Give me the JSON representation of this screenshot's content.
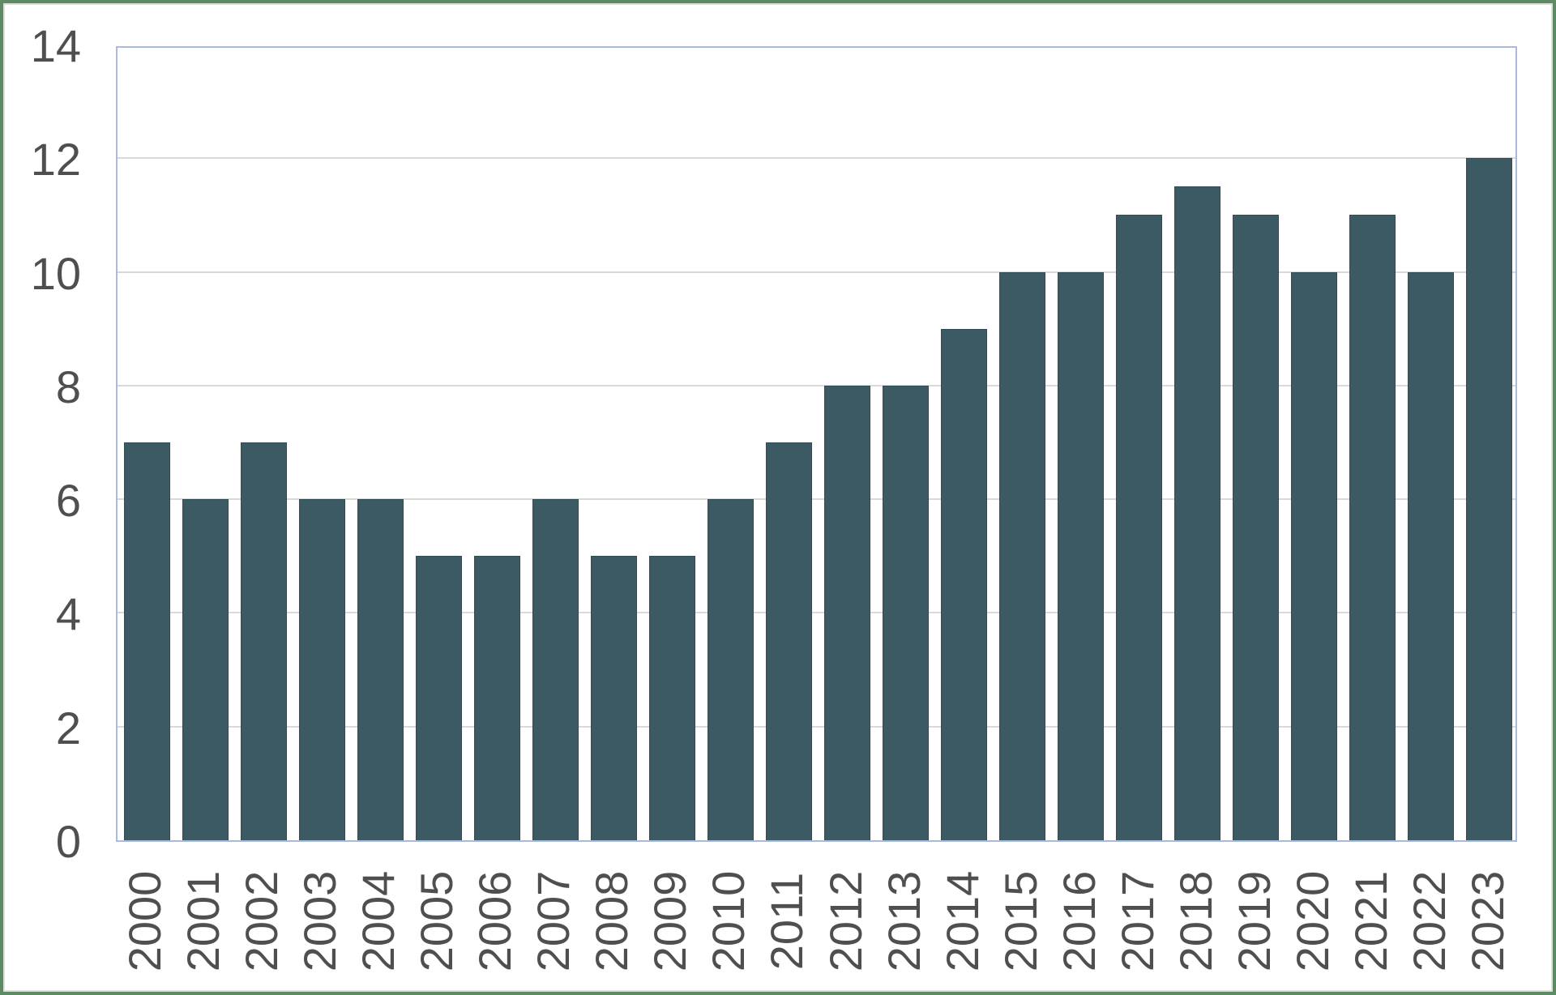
{
  "chart_data": {
    "type": "bar",
    "title": "",
    "xlabel": "",
    "ylabel": "",
    "categories": [
      "2000",
      "2001",
      "2002",
      "2003",
      "2004",
      "2005",
      "2006",
      "2007",
      "2008",
      "2009",
      "2010",
      "2011",
      "2012",
      "2013",
      "2014",
      "2015",
      "2016",
      "2017",
      "2018",
      "2019",
      "2020",
      "2021",
      "2022",
      "2023"
    ],
    "values": [
      7,
      6,
      7,
      6,
      6,
      5,
      5,
      6,
      5,
      5,
      6,
      7,
      8,
      8,
      9,
      10,
      10,
      11,
      11.5,
      11,
      10,
      11,
      10,
      12
    ],
    "yticks": [
      0,
      2,
      4,
      6,
      8,
      10,
      12,
      14
    ],
    "ylim": [
      0,
      14
    ],
    "grid": "horizontal",
    "legend": "none",
    "x_label_rotation_deg": -90,
    "colors": {
      "bar_fill": "#3b5a63",
      "bar_border": "#2e4d57",
      "gridline": "#d9d9d9",
      "plot_border": "#a9badd",
      "axis_label": "#4f4f4f",
      "frame_green": "#5d8a62",
      "frame_inner_line": "#dcdfdc",
      "background": "#ffffff"
    }
  }
}
